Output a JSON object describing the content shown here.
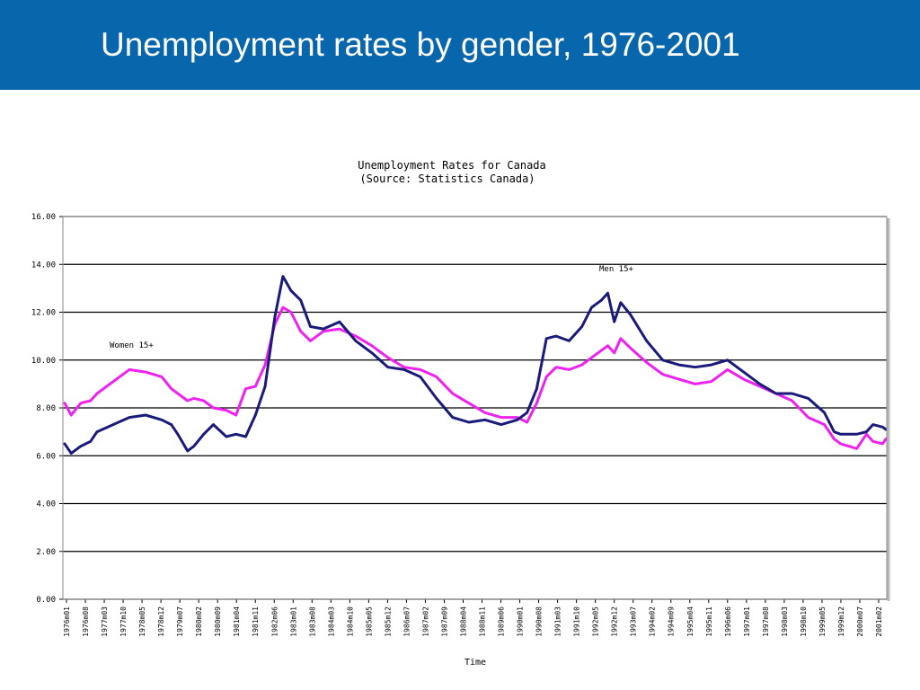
{
  "slide": {
    "title": "Unemployment rates by gender, 1976-2001"
  },
  "colors": {
    "banner": "#0866ad",
    "men": "#1a1a7a",
    "women": "#ee22ee",
    "grid": "#000000"
  },
  "chart_data": {
    "type": "line",
    "title": "Unemployment Rates for Canada",
    "subtitle": "(Source: Statistics Canada)",
    "xlabel": "Time",
    "ylabel": "",
    "ylim": [
      0,
      16
    ],
    "yticks": [
      "0.00",
      "2.00",
      "4.00",
      "6.00",
      "8.00",
      "10.00",
      "12.00",
      "14.00",
      "16.00"
    ],
    "xticks": [
      "1976m01",
      "1976m08",
      "1977m03",
      "1977m10",
      "1978m05",
      "1978m12",
      "1979m07",
      "1980m02",
      "1980m09",
      "1981m04",
      "1981m11",
      "1982m06",
      "1983m01",
      "1983m08",
      "1984m03",
      "1984m10",
      "1985m05",
      "1985m12",
      "1986m07",
      "1987m02",
      "1987m09",
      "1988m04",
      "1988m11",
      "1989m06",
      "1990m01",
      "1990m08",
      "1991m03",
      "1991m10",
      "1992m05",
      "1992m12",
      "1993m07",
      "1994m02",
      "1994m09",
      "1995m04",
      "1995m11",
      "1996m06",
      "1997m01",
      "1997m08",
      "1998m03",
      "1998m10",
      "1999m05",
      "1999m12",
      "2000m07",
      "2001m02"
    ],
    "grid": true,
    "annotations": {
      "women": "Women 15+",
      "men": "Men 15+"
    },
    "series": [
      {
        "name": "Men 15+",
        "x": [
          1976.0,
          1976.2,
          1976.5,
          1976.8,
          1977.0,
          1977.5,
          1978.0,
          1978.5,
          1979.0,
          1979.3,
          1979.5,
          1979.8,
          1980.0,
          1980.3,
          1980.6,
          1981.0,
          1981.3,
          1981.6,
          1981.9,
          1982.2,
          1982.5,
          1982.75,
          1983.0,
          1983.3,
          1983.6,
          1984.0,
          1984.5,
          1985.0,
          1985.5,
          1986.0,
          1986.5,
          1987.0,
          1987.5,
          1988.0,
          1988.5,
          1989.0,
          1989.5,
          1990.0,
          1990.3,
          1990.6,
          1990.9,
          1991.2,
          1991.6,
          1992.0,
          1992.3,
          1992.6,
          1992.8,
          1993.0,
          1993.2,
          1993.5,
          1994.0,
          1994.5,
          1995.0,
          1995.5,
          1996.0,
          1996.5,
          1997.0,
          1997.5,
          1998.0,
          1998.5,
          1999.0,
          1999.5,
          1999.8,
          2000.0,
          2000.5,
          2000.8,
          2001.0,
          2001.3,
          2001.4
        ],
        "values": [
          6.5,
          6.1,
          6.4,
          6.6,
          7.0,
          7.3,
          7.6,
          7.7,
          7.5,
          7.3,
          6.9,
          6.2,
          6.4,
          6.9,
          7.3,
          6.8,
          6.9,
          6.8,
          7.7,
          8.9,
          11.8,
          13.5,
          12.9,
          12.5,
          11.4,
          11.3,
          11.6,
          10.8,
          10.3,
          9.7,
          9.6,
          9.3,
          8.4,
          7.6,
          7.4,
          7.5,
          7.3,
          7.5,
          7.8,
          8.8,
          10.9,
          11.0,
          10.8,
          11.4,
          12.2,
          12.5,
          12.8,
          11.6,
          12.4,
          11.9,
          10.8,
          10.0,
          9.8,
          9.7,
          9.8,
          10.0,
          9.5,
          9.0,
          8.6,
          8.6,
          8.4,
          7.8,
          7.0,
          6.9,
          6.9,
          7.0,
          7.3,
          7.2,
          7.1
        ]
      },
      {
        "name": "Women 15+",
        "x": [
          1976.0,
          1976.2,
          1976.5,
          1976.8,
          1977.0,
          1977.5,
          1978.0,
          1978.5,
          1979.0,
          1979.3,
          1979.5,
          1979.8,
          1980.0,
          1980.3,
          1980.6,
          1981.0,
          1981.3,
          1981.6,
          1981.9,
          1982.2,
          1982.5,
          1982.75,
          1983.0,
          1983.3,
          1983.6,
          1984.0,
          1984.5,
          1985.0,
          1985.5,
          1986.0,
          1986.5,
          1987.0,
          1987.5,
          1988.0,
          1988.5,
          1989.0,
          1989.5,
          1990.0,
          1990.3,
          1990.6,
          1990.9,
          1991.2,
          1991.6,
          1992.0,
          1992.3,
          1992.6,
          1992.8,
          1993.0,
          1993.2,
          1993.5,
          1994.0,
          1994.5,
          1995.0,
          1995.5,
          1996.0,
          1996.5,
          1997.0,
          1997.5,
          1998.0,
          1998.5,
          1999.0,
          1999.5,
          1999.8,
          2000.0,
          2000.5,
          2000.8,
          2001.0,
          2001.3,
          2001.4
        ],
        "values": [
          8.2,
          7.7,
          8.2,
          8.3,
          8.6,
          9.1,
          9.6,
          9.5,
          9.3,
          8.8,
          8.6,
          8.3,
          8.4,
          8.3,
          8.0,
          7.9,
          7.7,
          8.8,
          8.9,
          9.8,
          11.5,
          12.2,
          12.0,
          11.2,
          10.8,
          11.2,
          11.3,
          11.0,
          10.6,
          10.1,
          9.7,
          9.6,
          9.3,
          8.6,
          8.2,
          7.8,
          7.6,
          7.6,
          7.4,
          8.2,
          9.3,
          9.7,
          9.6,
          9.8,
          10.1,
          10.4,
          10.6,
          10.3,
          10.9,
          10.5,
          9.9,
          9.4,
          9.2,
          9.0,
          9.1,
          9.6,
          9.2,
          8.9,
          8.6,
          8.3,
          7.6,
          7.3,
          6.7,
          6.5,
          6.3,
          6.9,
          6.6,
          6.5,
          6.7
        ]
      }
    ]
  }
}
